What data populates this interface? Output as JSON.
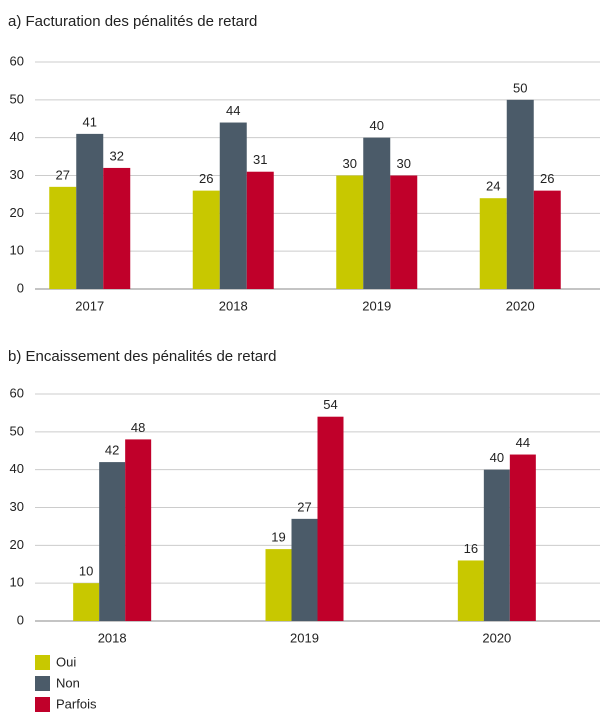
{
  "chart_data": [
    {
      "type": "bar",
      "title": "a) Facturation des pénalités de retard",
      "categories": [
        "2017",
        "2018",
        "2019",
        "2020"
      ],
      "series": [
        {
          "color": "#c8c800",
          "values": [
            27,
            26,
            30,
            24
          ]
        },
        {
          "color": "#4b5b69",
          "values": [
            41,
            44,
            40,
            50
          ]
        },
        {
          "color": "#c0002a",
          "values": [
            32,
            31,
            30,
            26
          ]
        }
      ],
      "ylim": [
        0,
        60
      ],
      "yticks": [
        0,
        10,
        20,
        30,
        40,
        50,
        60
      ],
      "grid": true
    },
    {
      "type": "bar",
      "title": "b) Encaissement des pénalités de retard",
      "categories": [
        "2018",
        "2019",
        "2020"
      ],
      "series": [
        {
          "name": "Oui",
          "color": "#c8c800",
          "values": [
            10,
            19,
            16
          ]
        },
        {
          "name": "Non",
          "color": "#4b5b69",
          "values": [
            42,
            27,
            40
          ]
        },
        {
          "name": "Parfois",
          "color": "#c0002a",
          "values": [
            48,
            54,
            44
          ]
        }
      ],
      "ylim": [
        0,
        60
      ],
      "yticks": [
        0,
        10,
        20,
        30,
        40,
        50,
        60
      ],
      "grid": true
    }
  ]
}
